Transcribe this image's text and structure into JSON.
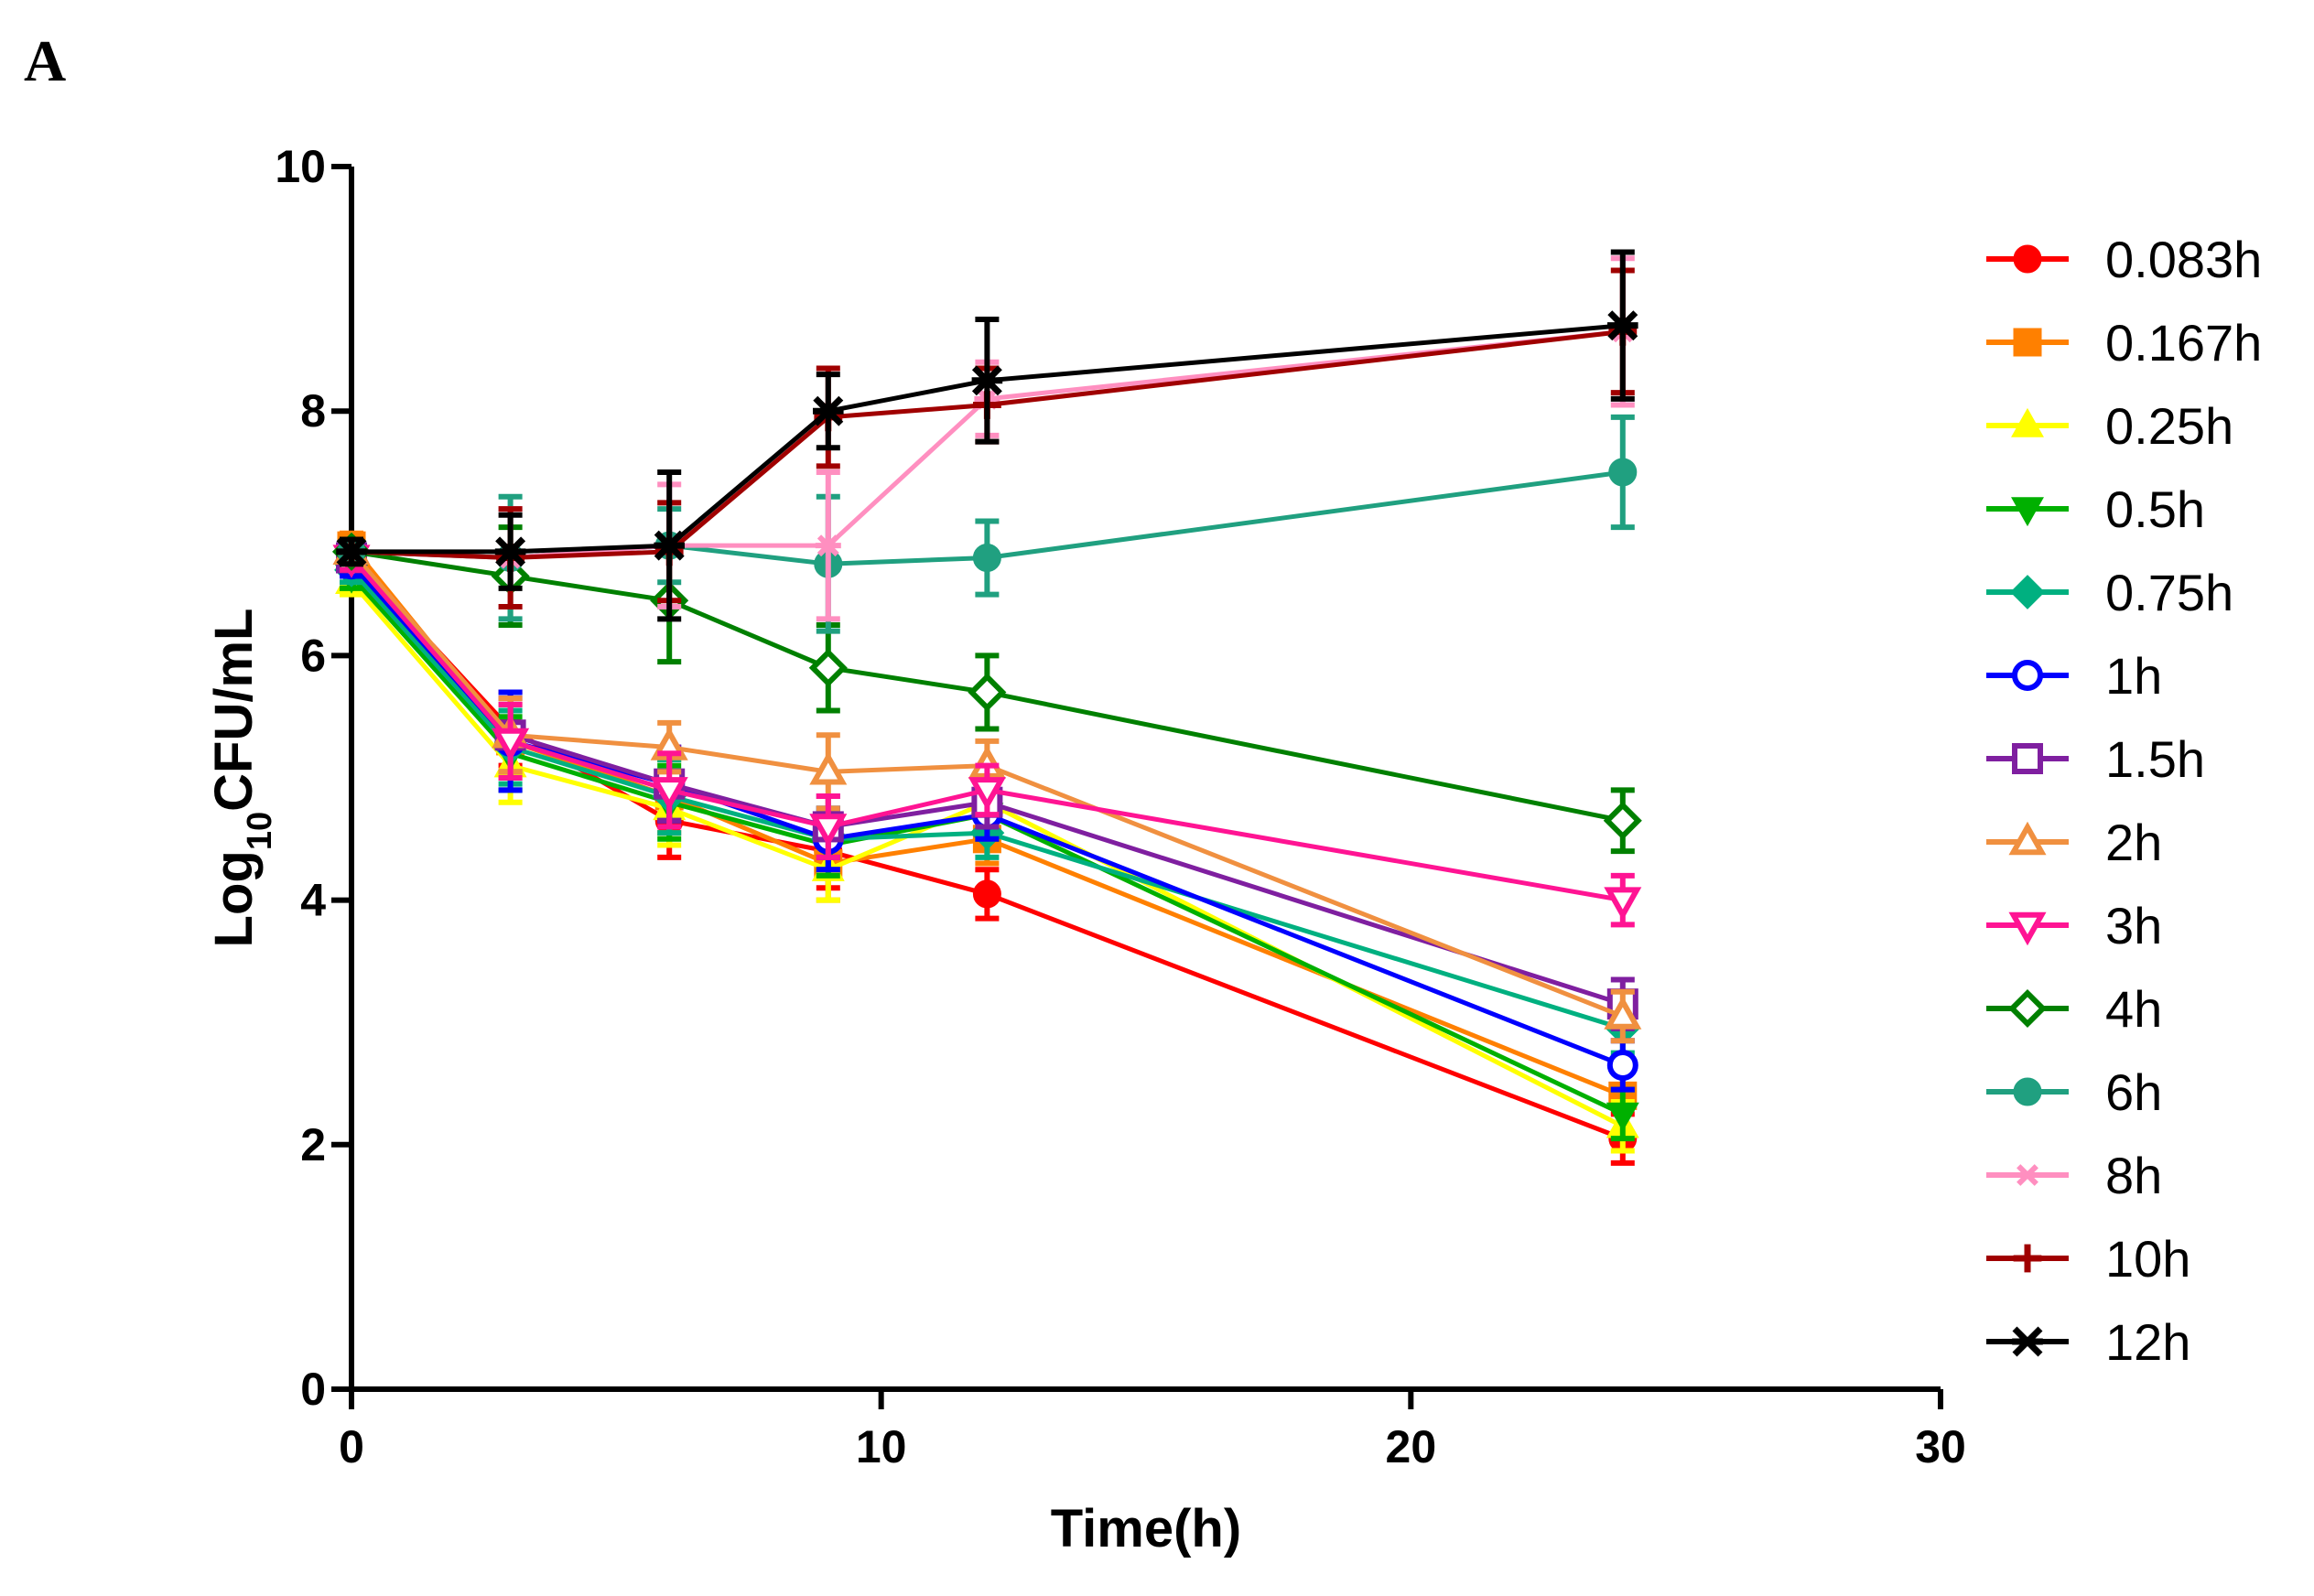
{
  "chart_data": {
    "type": "line",
    "panel_label": "A",
    "title": "",
    "xlabel": "Time(h)",
    "ylabel_main": "Log",
    "ylabel_sub": "10",
    "ylabel_tail": "CFU/mL",
    "xlim": [
      0,
      30
    ],
    "ylim": [
      0,
      10
    ],
    "xticks": [
      0,
      10,
      20,
      30
    ],
    "yticks": [
      0,
      2,
      4,
      6,
      8,
      10
    ],
    "legend_position": "right",
    "x": [
      0,
      3,
      6,
      9,
      12,
      24
    ],
    "series": [
      {
        "name": "0.083h",
        "color": "#ff0000",
        "marker": "circle-filled",
        "values": [
          6.8,
          5.4,
          4.65,
          4.4,
          4.05,
          2.05
        ],
        "errors": [
          0.1,
          0.3,
          0.3,
          0.3,
          0.2,
          0.2
        ]
      },
      {
        "name": "0.167h",
        "color": "#ff8000",
        "marker": "square-filled",
        "values": [
          6.9,
          5.3,
          4.85,
          4.3,
          4.5,
          2.4
        ],
        "errors": [
          0.1,
          0.3,
          0.3,
          0.3,
          0.2,
          0.3
        ]
      },
      {
        "name": "0.25h",
        "color": "#ffff00",
        "marker": "triangle-filled",
        "values": [
          6.6,
          5.1,
          4.75,
          4.25,
          4.8,
          2.15
        ],
        "errors": [
          0.1,
          0.3,
          0.3,
          0.25,
          0.2,
          0.2
        ]
      },
      {
        "name": "0.5h",
        "color": "#00b000",
        "marker": "tridown-filled",
        "values": [
          6.65,
          5.2,
          4.8,
          4.45,
          4.7,
          2.25
        ],
        "errors": [
          0.1,
          0.3,
          0.3,
          0.25,
          0.2,
          0.2
        ]
      },
      {
        "name": "0.75h",
        "color": "#00b080",
        "marker": "diamond-filled",
        "values": [
          6.7,
          5.25,
          4.85,
          4.5,
          4.55,
          2.95
        ],
        "errors": [
          0.1,
          0.3,
          0.3,
          0.25,
          0.2,
          0.2
        ]
      },
      {
        "name": "1h",
        "color": "#0000ff",
        "marker": "circle-open",
        "values": [
          6.75,
          5.3,
          4.95,
          4.5,
          4.7,
          2.65
        ],
        "errors": [
          0.1,
          0.4,
          0.3,
          0.25,
          0.2,
          0.2
        ]
      },
      {
        "name": "1.5h",
        "color": "#7f1fa0",
        "marker": "square-open",
        "values": [
          6.8,
          5.35,
          4.95,
          4.6,
          4.8,
          3.15
        ],
        "errors": [
          0.1,
          0.3,
          0.3,
          0.25,
          0.2,
          0.2
        ]
      },
      {
        "name": "2h",
        "color": "#f09040",
        "marker": "triangle-open",
        "values": [
          6.85,
          5.35,
          5.25,
          5.05,
          5.1,
          3.05
        ],
        "errors": [
          0.1,
          0.3,
          0.2,
          0.3,
          0.2,
          0.2
        ]
      },
      {
        "name": "3h",
        "color": "#ff1493",
        "marker": "tridown-open",
        "values": [
          6.8,
          5.3,
          4.9,
          4.6,
          4.9,
          4.0
        ],
        "errors": [
          0.1,
          0.3,
          0.3,
          0.25,
          0.2,
          0.2
        ]
      },
      {
        "name": "4h",
        "color": "#008000",
        "marker": "diamond-open",
        "values": [
          6.85,
          6.65,
          6.45,
          5.9,
          5.7,
          4.65
        ],
        "errors": [
          0.1,
          0.4,
          0.5,
          0.35,
          0.3,
          0.25
        ]
      },
      {
        "name": "6h",
        "color": "#20a080",
        "marker": "circle-filled",
        "values": [
          6.85,
          6.8,
          6.9,
          6.75,
          6.8,
          7.5
        ],
        "errors": [
          0.1,
          0.5,
          0.3,
          0.55,
          0.3,
          0.45
        ]
      },
      {
        "name": "8h",
        "color": "#ff8fc0",
        "marker": "star",
        "values": [
          6.85,
          6.8,
          6.9,
          6.9,
          8.1,
          8.65
        ],
        "errors": [
          0.1,
          0.4,
          0.5,
          0.6,
          0.3,
          0.6
        ]
      },
      {
        "name": "10h",
        "color": "#a00000",
        "marker": "plus",
        "values": [
          6.85,
          6.8,
          6.85,
          7.95,
          8.05,
          8.65
        ],
        "errors": [
          0.1,
          0.4,
          0.4,
          0.4,
          0.3,
          0.5
        ]
      },
      {
        "name": "12h",
        "color": "#000000",
        "marker": "asterisk",
        "values": [
          6.85,
          6.85,
          6.9,
          8.0,
          8.25,
          8.7
        ],
        "errors": [
          0.1,
          0.3,
          0.6,
          0.3,
          0.5,
          0.6
        ]
      }
    ]
  }
}
